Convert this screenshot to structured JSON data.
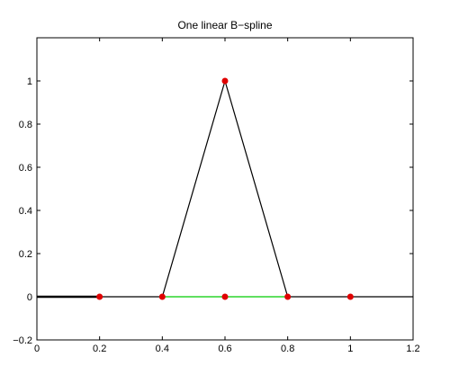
{
  "chart_data": {
    "type": "line",
    "title": "One linear B−spline",
    "xlabel": "",
    "ylabel": "",
    "xlim": [
      0,
      1.2
    ],
    "ylim": [
      -0.2,
      1.2
    ],
    "grid": false,
    "x_ticks": [
      {
        "value": 0,
        "label": "0"
      },
      {
        "value": 0.2,
        "label": "0.2"
      },
      {
        "value": 0.4,
        "label": "0.4"
      },
      {
        "value": 0.6,
        "label": "0.6"
      },
      {
        "value": 0.8,
        "label": "0.8"
      },
      {
        "value": 1,
        "label": "1"
      },
      {
        "value": 1.2,
        "label": "1.2"
      }
    ],
    "y_ticks": [
      {
        "value": -0.2,
        "label": "−0.2"
      },
      {
        "value": 0,
        "label": "0"
      },
      {
        "value": 0.2,
        "label": "0.2"
      },
      {
        "value": 0.4,
        "label": "0.4"
      },
      {
        "value": 0.6,
        "label": "0.6"
      },
      {
        "value": 0.8,
        "label": "0.8"
      },
      {
        "value": 1,
        "label": "1"
      }
    ],
    "series": [
      {
        "color": "#000000",
        "x": [
          0,
          0.4,
          0.6,
          0.8,
          1.2
        ],
        "y": [
          0,
          0,
          1,
          0,
          0
        ]
      },
      {
        "color": "#000000",
        "x": [
          0,
          0.2
        ],
        "y": [
          0,
          0
        ]
      },
      {
        "color": "#00cc00",
        "x": [
          0.4,
          0.8
        ],
        "y": [
          0,
          0
        ]
      }
    ],
    "markers": {
      "color": "#e00000",
      "x": [
        0.2,
        0.4,
        0.6,
        0.6,
        0.8,
        1.0
      ],
      "y": [
        0,
        0,
        1,
        0,
        0,
        0
      ]
    }
  }
}
